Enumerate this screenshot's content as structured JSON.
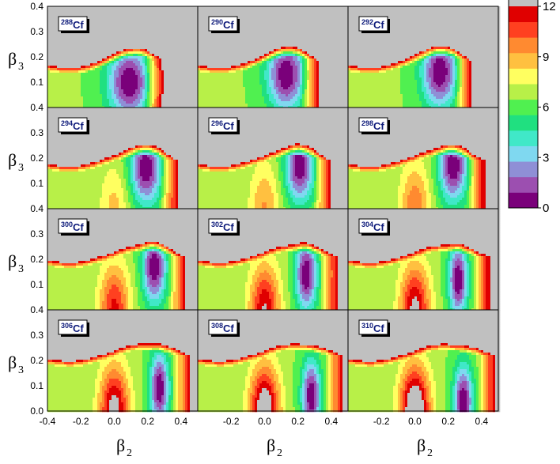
{
  "chart_data": {
    "type": "heatmap",
    "rows": 4,
    "cols": 3,
    "x_label": "β",
    "x_label_sub": "2",
    "y_label": "β",
    "y_label_sub": "3",
    "xlim": [
      -0.4,
      0.5
    ],
    "ylim": [
      0.0,
      0.4
    ],
    "x_ticks": [
      "-0.4",
      "-0.2",
      "0.0",
      "0.2",
      "0.4"
    ],
    "x_tick_values": [
      -0.4,
      -0.2,
      0.0,
      0.2,
      0.4
    ],
    "y_ticks": [
      "0.0",
      "0.1",
      "0.2",
      "0.3",
      "0.4"
    ],
    "y_tick_values": [
      0.0,
      0.1,
      0.2,
      0.3,
      0.4
    ],
    "colorbar": {
      "min": 0,
      "max": 12,
      "ticks": [
        "0",
        "3",
        "6",
        "9",
        "12"
      ],
      "tick_values": [
        0,
        3,
        6,
        9,
        12
      ],
      "colors": [
        "#7a007a",
        "#9c4fb0",
        "#8f8fd6",
        "#7fd8f0",
        "#40e8c8",
        "#20e080",
        "#50f050",
        "#b8f048",
        "#ffff60",
        "#ffc040",
        "#ff8a30",
        "#ff4020",
        "#e00000"
      ],
      "over_color": "#c0c0c0"
    },
    "panels": [
      {
        "mass": "288",
        "element": "Cf",
        "min_b2": 0.09,
        "min_b3": 0.1,
        "valley_dx": 0.09,
        "shelf": 0.14,
        "barrier": 0.0
      },
      {
        "mass": "290",
        "element": "Cf",
        "min_b2": 0.13,
        "min_b3": 0.13,
        "valley_dx": 0.08,
        "shelf": 0.14,
        "barrier": 0.0
      },
      {
        "mass": "292",
        "element": "Cf",
        "min_b2": 0.15,
        "min_b3": 0.14,
        "valley_dx": 0.075,
        "shelf": 0.14,
        "barrier": 0.0
      },
      {
        "mass": "294",
        "element": "Cf",
        "min_b2": 0.19,
        "min_b3": 0.16,
        "valley_dx": 0.065,
        "shelf": 0.15,
        "barrier": 0.3
      },
      {
        "mass": "296",
        "element": "Cf",
        "min_b2": 0.21,
        "min_b3": 0.17,
        "valley_dx": 0.06,
        "shelf": 0.15,
        "barrier": 0.4
      },
      {
        "mass": "298",
        "element": "Cf",
        "min_b2": 0.23,
        "min_b3": 0.17,
        "valley_dx": 0.06,
        "shelf": 0.15,
        "barrier": 0.5
      },
      {
        "mass": "300",
        "element": "Cf",
        "min_b2": 0.24,
        "min_b3": 0.17,
        "valley_dx": 0.05,
        "shelf": 0.17,
        "barrier": 0.7
      },
      {
        "mass": "302",
        "element": "Cf",
        "min_b2": 0.25,
        "min_b3": 0.14,
        "valley_dx": 0.045,
        "shelf": 0.17,
        "barrier": 0.8
      },
      {
        "mass": "304",
        "element": "Cf",
        "min_b2": 0.26,
        "min_b3": 0.12,
        "valley_dx": 0.04,
        "shelf": 0.17,
        "barrier": 0.85
      },
      {
        "mass": "306",
        "element": "Cf",
        "min_b2": 0.27,
        "min_b3": 0.09,
        "valley_dx": 0.04,
        "shelf": 0.18,
        "barrier": 0.9
      },
      {
        "mass": "308",
        "element": "Cf",
        "min_b2": 0.28,
        "min_b3": 0.06,
        "valley_dx": 0.04,
        "shelf": 0.18,
        "barrier": 1.0
      },
      {
        "mass": "310",
        "element": "Cf",
        "min_b2": 0.29,
        "min_b3": 0.04,
        "valley_dx": 0.04,
        "shelf": 0.18,
        "barrier": 1.1
      }
    ]
  }
}
